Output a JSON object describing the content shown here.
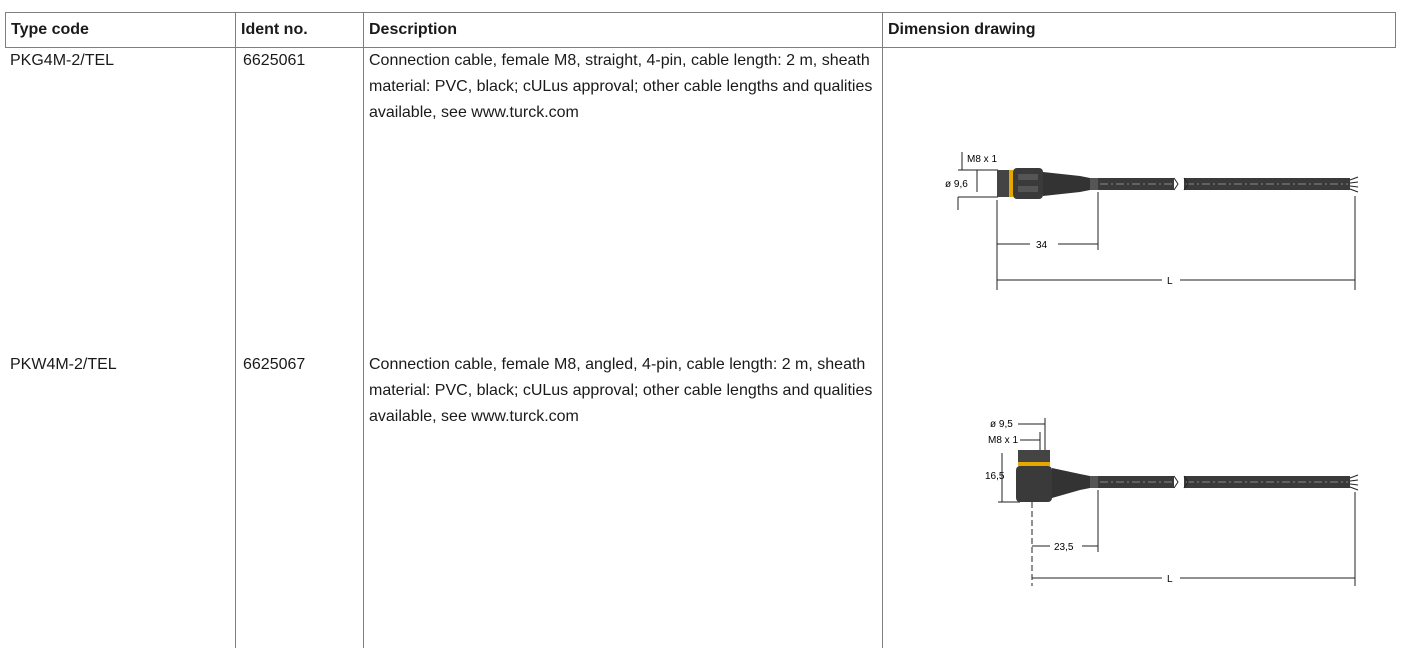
{
  "table": {
    "headers": [
      "Type code",
      "Ident no.",
      "Description",
      "Dimension drawing"
    ],
    "rows": [
      {
        "type_code": "PKG4M-2/TEL",
        "ident_no": "6625061",
        "description": "Connection cable, female M8, straight, 4-pin, cable length: 2 m, sheath material: PVC, black; cULus approval; other cable lengths and qualities available, see www.turck.com",
        "drawing": {
          "thread_label": "M8 x 1",
          "diameter_label": "ø 9,6",
          "head_length_label": "34",
          "length_label": "L"
        }
      },
      {
        "type_code": "PKW4M-2/TEL",
        "ident_no": "6625067",
        "description": "Connection cable, female M8, angled, 4-pin, cable length: 2 m, sheath material: PVC, black; cULus approval; other cable lengths and qualities available, see www.turck.com",
        "drawing": {
          "diameter_label": "ø 9,5",
          "thread_label": "M8 x 1",
          "height_label": "16,5",
          "head_length_label": "23,5",
          "length_label": "L"
        }
      }
    ]
  },
  "colors": {
    "cable": "#3a3a3a",
    "accent": "#e6a800",
    "border": "#7f7f7f"
  }
}
